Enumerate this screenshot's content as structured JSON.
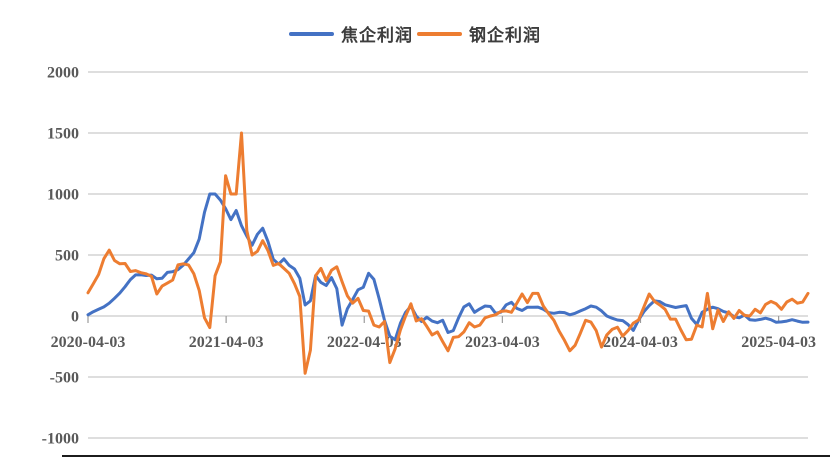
{
  "legend": [
    {
      "label": "焦企利润",
      "color": "#4472C4"
    },
    {
      "label": "钢企利润",
      "color": "#ED7D31"
    }
  ],
  "colors": {
    "grid": "#c9c9c9",
    "tick": "#9b9b9b",
    "axis_text": "#595959",
    "background": "#ffffff",
    "bottom_border": "#1c1c1c"
  },
  "chart_data": {
    "type": "line",
    "title": "",
    "xlabel": "",
    "ylabel": "",
    "x_start": "2020-04-03",
    "x_step_days": 14,
    "x_tick_labels": [
      "2020-04-03",
      "2021-04-03",
      "2022-04-03",
      "2023-04-03",
      "2024-04-03",
      "2025-04-03"
    ],
    "x_tick_positions": [
      0,
      26.09,
      52.18,
      78.27,
      104.36,
      130.45
    ],
    "y_ticks": [
      2000,
      1500,
      1000,
      500,
      0,
      -500,
      -1000
    ],
    "ylim": [
      -1000,
      2000
    ],
    "grid": true,
    "legend_position": "top-center",
    "series": [
      {
        "name": "焦企利润",
        "color": "#4472C4",
        "values": [
          10,
          35,
          55,
          75,
          105,
          145,
          188,
          240,
          298,
          337,
          338,
          332,
          335,
          305,
          310,
          357,
          363,
          380,
          417,
          468,
          520,
          630,
          850,
          1000,
          1000,
          950,
          880,
          790,
          865,
          740,
          655,
          580,
          670,
          720,
          610,
          465,
          425,
          468,
          415,
          385,
          310,
          90,
          125,
          330,
          275,
          250,
          315,
          225,
          -75,
          60,
          135,
          215,
          235,
          350,
          300,
          140,
          -35,
          -165,
          -195,
          -60,
          30,
          80,
          0,
          -45,
          -10,
          -42,
          -55,
          -35,
          -135,
          -120,
          -15,
          75,
          100,
          30,
          58,
          82,
          78,
          22,
          32,
          92,
          112,
          62,
          45,
          72,
          72,
          73,
          56,
          28,
          22,
          30,
          28,
          10,
          22,
          42,
          60,
          82,
          72,
          42,
          0,
          -18,
          -33,
          -38,
          -70,
          -118,
          -33,
          35,
          85,
          125,
          118,
          92,
          80,
          70,
          78,
          85,
          -20,
          -70,
          30,
          55,
          72,
          60,
          38,
          25,
          -5,
          -15,
          8,
          -30,
          -35,
          -28,
          -18,
          -30,
          -52,
          -48,
          -42,
          -30,
          -42,
          -52,
          -50
        ]
      },
      {
        "name": "钢企利润",
        "color": "#ED7D31",
        "values": [
          190,
          265,
          340,
          470,
          540,
          455,
          428,
          430,
          365,
          372,
          355,
          345,
          325,
          180,
          245,
          270,
          295,
          419,
          428,
          418,
          345,
          210,
          -15,
          -95,
          330,
          445,
          1150,
          1000,
          1000,
          1500,
          700,
          500,
          530,
          617,
          535,
          415,
          430,
          390,
          350,
          265,
          160,
          -470,
          -280,
          330,
          390,
          290,
          375,
          403,
          280,
          165,
          105,
          145,
          45,
          40,
          -75,
          -90,
          -45,
          -382,
          -270,
          -115,
          0,
          100,
          -40,
          -22,
          -85,
          -155,
          -130,
          -210,
          -285,
          -175,
          -170,
          -130,
          -55,
          -90,
          -75,
          -15,
          0,
          10,
          38,
          42,
          30,
          105,
          180,
          110,
          185,
          185,
          82,
          20,
          -35,
          -125,
          -200,
          -285,
          -240,
          -140,
          -35,
          -50,
          -120,
          -255,
          -155,
          -110,
          -92,
          -165,
          -120,
          -58,
          -32,
          75,
          180,
          120,
          90,
          55,
          -25,
          -25,
          -115,
          -195,
          -190,
          -75,
          -90,
          185,
          -105,
          50,
          -45,
          35,
          -20,
          45,
          5,
          0,
          55,
          25,
          95,
          120,
          100,
          55,
          115,
          138,
          105,
          115,
          185
        ]
      }
    ]
  }
}
